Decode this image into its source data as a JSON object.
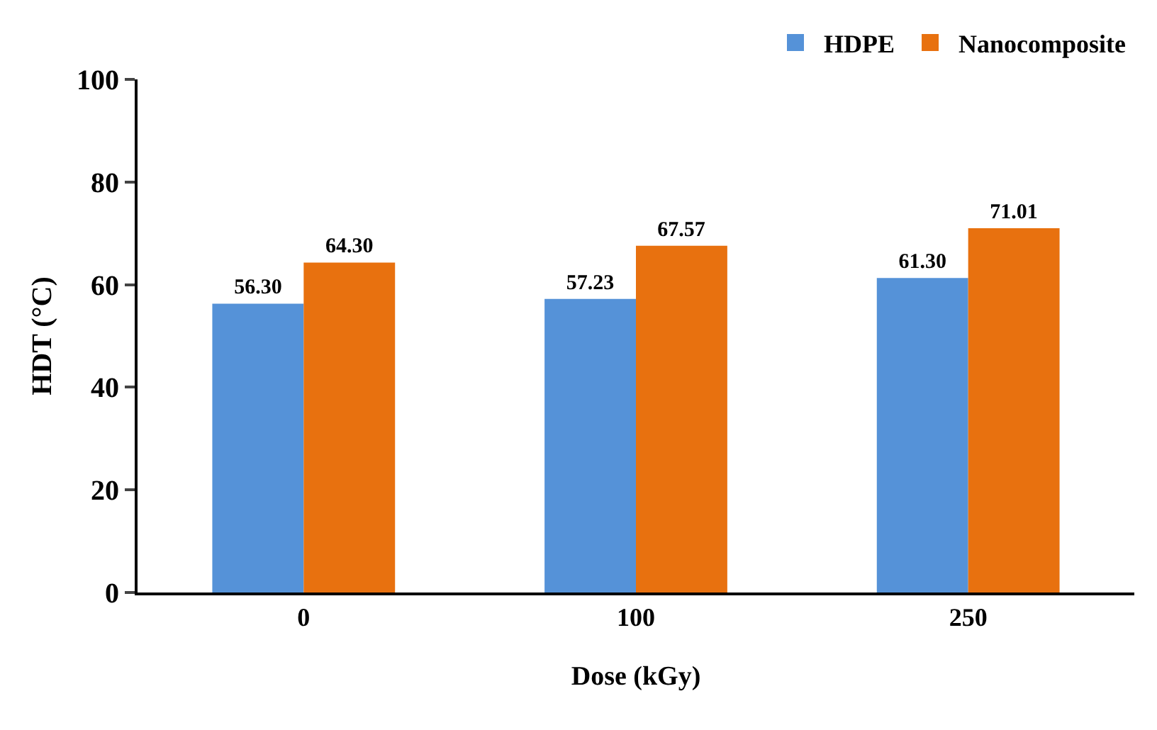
{
  "chart_data": {
    "type": "bar",
    "xlabel": "Dose (kGy)",
    "ylabel": "HDT (°C)",
    "categories": [
      "0",
      "100",
      "250"
    ],
    "series": [
      {
        "name": "HDPE",
        "color": "#5592d8",
        "values": [
          56.3,
          57.23,
          61.3
        ],
        "value_labels": [
          "56.30",
          "57.23",
          "61.30"
        ]
      },
      {
        "name": "Nanocomposite",
        "color": "#e8710f",
        "values": [
          64.3,
          67.57,
          71.01
        ],
        "value_labels": [
          "64.30",
          "67.57",
          "71.01"
        ]
      }
    ],
    "ylim": [
      0,
      100
    ],
    "yticks": [
      0,
      20,
      40,
      60,
      80,
      100
    ],
    "grid": false,
    "legend": "top right"
  }
}
